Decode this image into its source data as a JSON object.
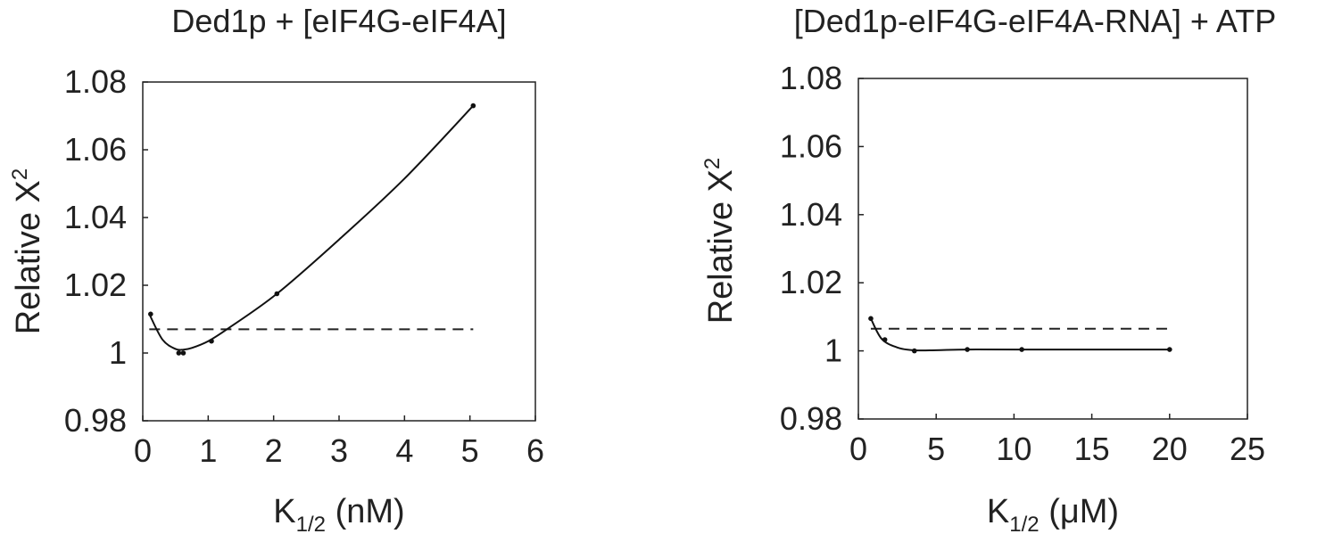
{
  "chart_data": [
    {
      "type": "line",
      "title": "Ded1p + [eIF4G-eIF4A]",
      "xlabel": "K",
      "xlabel_sub": "1/2",
      "xlabel_unit": " (nM)",
      "ylabel": "Relative X",
      "ylabel_sup": "2",
      "xlim": [
        0,
        6
      ],
      "ylim": [
        0.98,
        1.08
      ],
      "xticks": [
        "0",
        "1",
        "2",
        "3",
        "4",
        "5",
        "6"
      ],
      "yticks": [
        "0.98",
        "1",
        "1.02",
        "1.04",
        "1.06",
        "1.08"
      ],
      "series": [
        {
          "x": [
            0.1,
            0.3,
            0.5,
            0.62,
            0.75,
            1.0,
            1.3,
            2.05,
            3.0,
            4.0,
            5.05
          ],
          "y": [
            1.0115,
            1.004,
            1.0012,
            1.001,
            1.0015,
            1.0035,
            1.0072,
            1.0175,
            1.0335,
            1.0515,
            1.073
          ],
          "points_x": [
            0.12,
            0.55,
            0.62,
            1.05,
            2.05,
            5.05
          ],
          "points_y": [
            1.0115,
            1.0,
            1.0,
            1.0035,
            1.0175,
            1.073
          ]
        }
      ],
      "threshold": 1.007,
      "threshold_x": [
        0.1,
        5.05
      ]
    },
    {
      "type": "line",
      "title": "[Ded1p-eIF4G-eIF4A-RNA] + ATP",
      "xlabel": "K",
      "xlabel_sub": "1/2",
      "xlabel_unit": " (μM)",
      "ylabel": "Relative X",
      "ylabel_sup": "2",
      "xlim": [
        0,
        25
      ],
      "ylim": [
        0.98,
        1.08
      ],
      "xticks": [
        "0",
        "5",
        "10",
        "15",
        "20",
        "25"
      ],
      "yticks": [
        "0.98",
        "1",
        "1.02",
        "1.04",
        "1.06",
        "1.08"
      ],
      "series": [
        {
          "x": [
            0.8,
            1.5,
            2.5,
            3.5,
            5.0,
            7.0,
            10.5,
            20.0
          ],
          "y": [
            1.0095,
            1.0035,
            1.001,
            1.0002,
            1.0002,
            1.0004,
            1.0004,
            1.0004
          ],
          "points_x": [
            0.8,
            1.7,
            3.6,
            7.0,
            10.5,
            20.0
          ],
          "points_y": [
            1.0095,
            1.0033,
            1.0,
            1.0004,
            1.0004,
            1.0004
          ]
        }
      ],
      "threshold": 1.0065,
      "threshold_x": [
        0.8,
        20.0
      ]
    }
  ]
}
